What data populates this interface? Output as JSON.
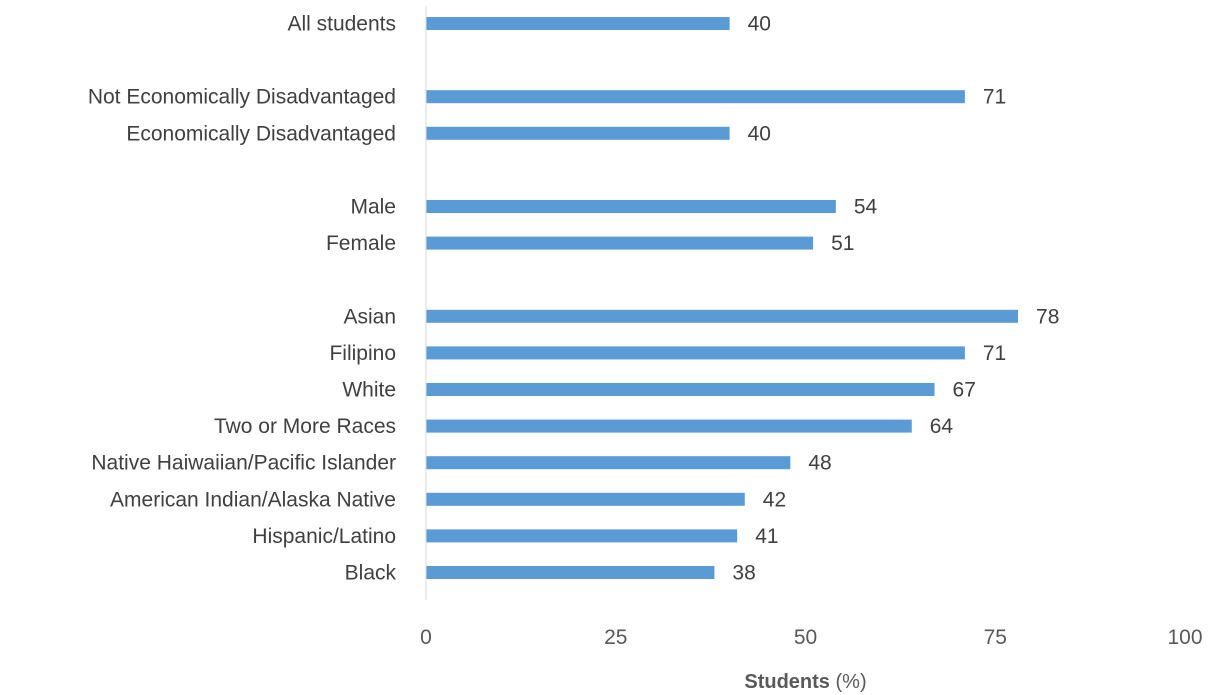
{
  "chart_data": {
    "type": "bar",
    "orientation": "horizontal",
    "categories": [
      "All students",
      "Not Economically Disadvantaged",
      "Economically Disadvantaged",
      "Male",
      "Female",
      "Asian",
      "Filipino",
      "White",
      "Two or More Races",
      "Native Haiwaiian/Pacific Islander",
      "American Indian/Alaska Native",
      "Hispanic/Latino",
      "Black"
    ],
    "values": [
      40,
      71,
      40,
      54,
      51,
      78,
      71,
      67,
      64,
      48,
      42,
      41,
      38
    ],
    "groups": [
      [
        0
      ],
      [
        1,
        2
      ],
      [
        3,
        4
      ],
      [
        5,
        6,
        7,
        8,
        9,
        10,
        11,
        12
      ]
    ],
    "xlim": [
      0,
      100
    ],
    "xticks": [
      "0",
      "25",
      "50",
      "75",
      "100"
    ],
    "xlabel_bold": "Students",
    "xlabel_rest": " (%)",
    "bar_color": "#5b9bd5",
    "grid": false
  }
}
